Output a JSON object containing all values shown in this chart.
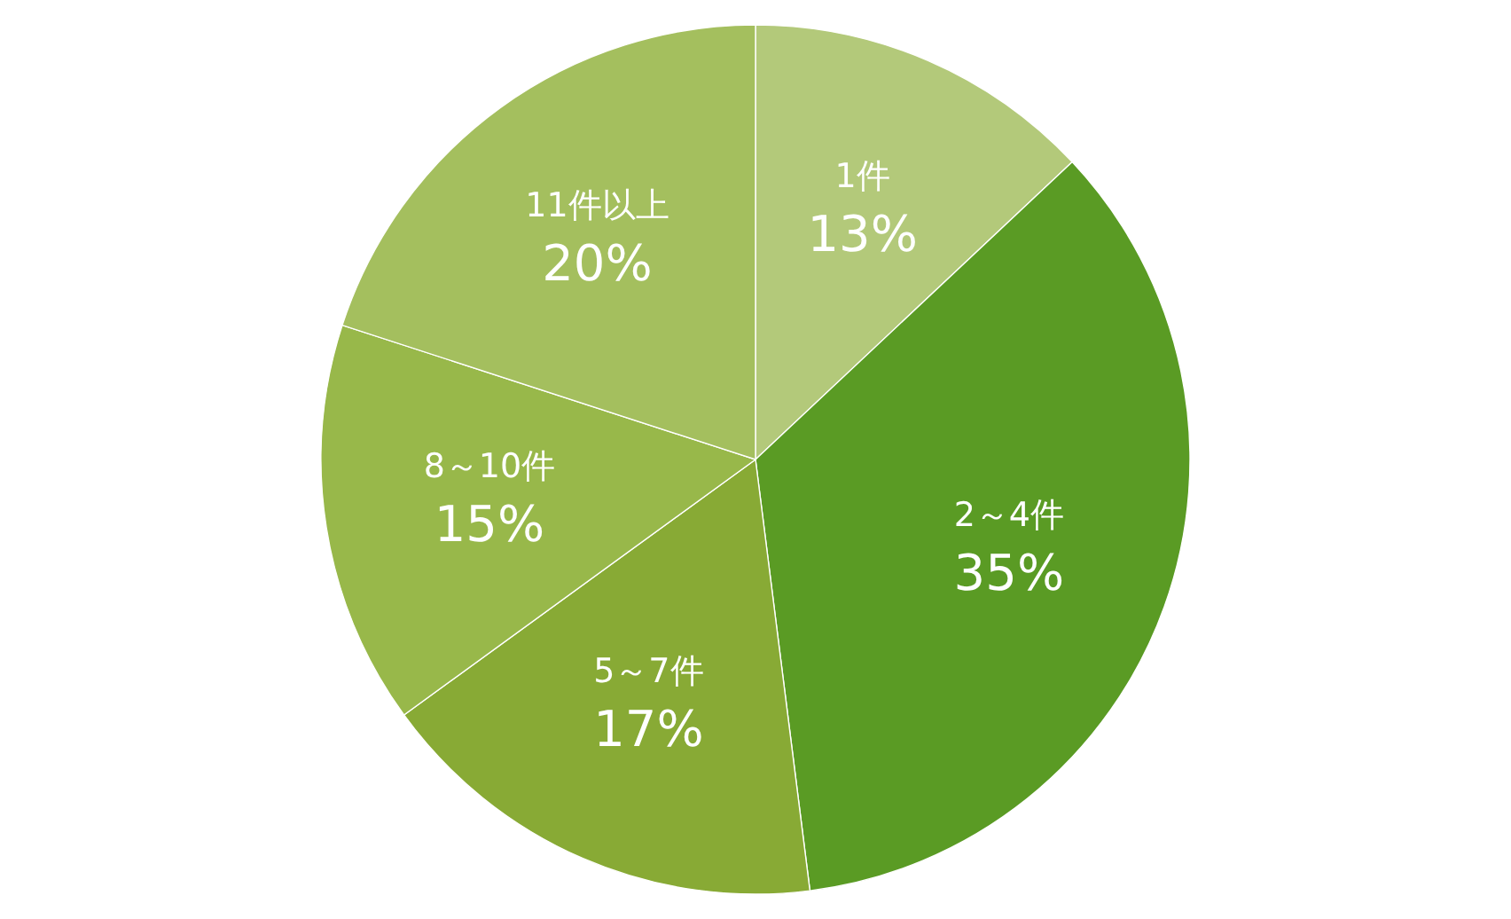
{
  "chart_data": {
    "type": "pie",
    "categories": [
      "1件",
      "2～4件",
      "5～7件",
      "8～10件",
      "11件以上"
    ],
    "values": [
      13,
      35,
      17,
      15,
      20
    ],
    "colors": [
      "#b3c97a",
      "#5a9b24",
      "#88aa35",
      "#98b84a",
      "#a4bf5e"
    ],
    "value_labels": [
      "13%",
      "35%",
      "17%",
      "15%",
      "20%"
    ]
  }
}
